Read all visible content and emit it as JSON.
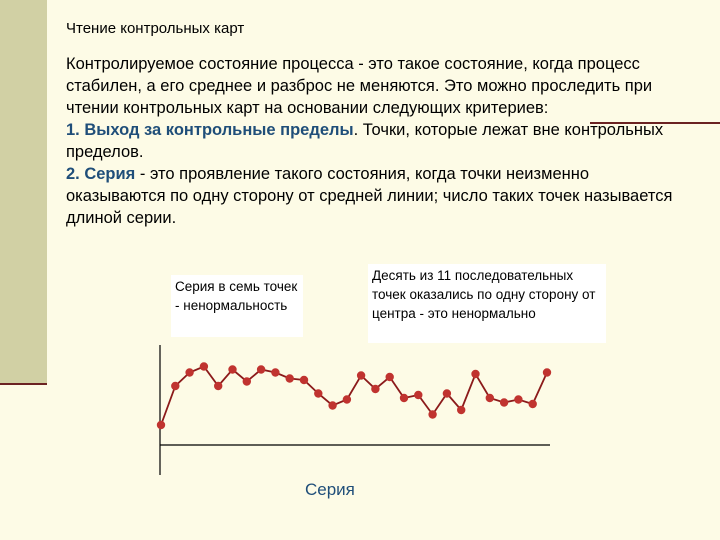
{
  "slide": {
    "title": "Чтение контрольных карт",
    "intro": "Контролируемое состояние процесса - это такое состояние, когда процесс стабилен, а его среднее и разброс не меняются. Это можно проследить при чтении контрольных карт на основании следующих критериев:",
    "item1_label": "1. Выход за контрольные пределы",
    "item1_text": ". Точки, которые лежат вне контрольных пределов.",
    "item2_label": "2. Серия",
    "item2_text": " - это проявление такого состояния, когда точки неизменно оказываются по одну сторону от средней линии; число таких точек называется длиной серии.",
    "note_left": "Серия в семь точек - ненормальность",
    "note_right": "Десять из 11 последовательных точек оказались по одну сторону от центра - это ненормально",
    "caption": "Серия"
  },
  "chart_data": {
    "type": "line",
    "x": [
      1,
      2,
      3,
      4,
      5,
      6,
      7,
      8,
      9,
      10,
      11,
      12,
      13,
      14,
      15,
      16,
      17,
      18,
      19,
      20,
      21,
      22,
      23,
      24,
      25,
      26,
      27,
      28
    ],
    "series": [
      {
        "values": [
          0.0,
          2.6,
          3.5,
          3.9,
          2.6,
          3.7,
          2.9,
          3.7,
          3.5,
          3.1,
          3.0,
          2.1,
          1.3,
          1.7,
          3.3,
          2.4,
          3.2,
          1.8,
          2.0,
          0.7,
          2.1,
          1.0,
          3.4,
          1.8,
          1.5,
          1.7,
          1.4,
          3.5
        ]
      }
    ],
    "colors": {
      "line": "#8b1a1a",
      "marker": "#c0332f",
      "axis": "#000000"
    }
  }
}
